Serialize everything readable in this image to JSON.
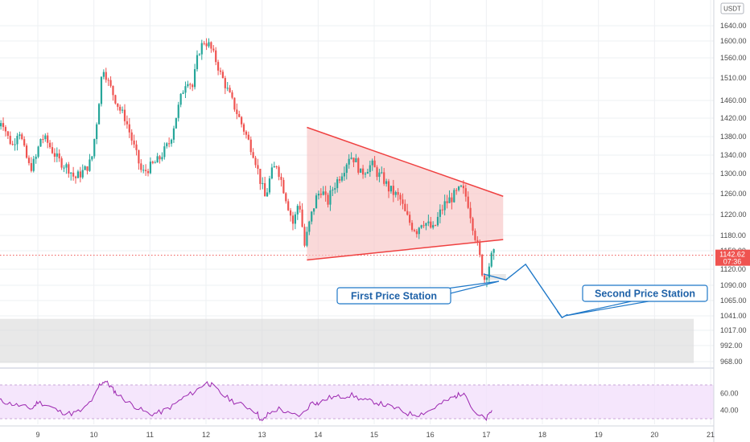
{
  "currency_badge": "USDT",
  "price_axis": {
    "ticks": [
      "1640.00",
      "1600.00",
      "1560.00",
      "1510.00",
      "1460.00",
      "1420.00",
      "1380.00",
      "1340.00",
      "1300.00",
      "1260.00",
      "1220.00",
      "1180.00",
      "1150.00",
      "1120.00",
      "1090.00",
      "1065.00",
      "1041.00",
      "1017.00",
      "992.00",
      "968.00"
    ]
  },
  "last_price": {
    "value": "1142.62",
    "countdown": "07:36",
    "color": "#ef5350"
  },
  "date_axis": {
    "ticks": [
      "9",
      "10",
      "11",
      "12",
      "13",
      "14",
      "15",
      "16",
      "17",
      "18",
      "19",
      "20",
      "21"
    ]
  },
  "annotations": {
    "first_station": "First Price Station",
    "second_station": "Second Price Station"
  },
  "rsi": {
    "ticks": [
      "60.00",
      "40.00"
    ],
    "upper": 70,
    "lower": 30
  },
  "colors": {
    "up": "#26a69a",
    "down": "#ef5350",
    "triangle_fill": "#f7c5c5",
    "triangle_line": "#ef4040",
    "rsi_line": "#9c27b0",
    "rsi_band": "#f3e0fb",
    "callout": "#1f78c8",
    "zone": "#d9d9d9"
  },
  "chart_data": {
    "type": "candlestick",
    "x_unit": "day",
    "xlim": [
      8.3,
      21
    ],
    "ylim": [
      957,
      1665
    ],
    "price_path": [
      [
        8.3,
        1390
      ],
      [
        8.4,
        1420
      ],
      [
        8.5,
        1380
      ],
      [
        8.6,
        1360
      ],
      [
        8.7,
        1400
      ],
      [
        8.8,
        1350
      ],
      [
        8.9,
        1310
      ],
      [
        9.0,
        1330
      ],
      [
        9.1,
        1380
      ],
      [
        9.2,
        1370
      ],
      [
        9.3,
        1350
      ],
      [
        9.4,
        1330
      ],
      [
        9.5,
        1320
      ],
      [
        9.6,
        1310
      ],
      [
        9.7,
        1290
      ],
      [
        9.8,
        1300
      ],
      [
        9.9,
        1310
      ],
      [
        10.0,
        1330
      ],
      [
        10.1,
        1420
      ],
      [
        10.2,
        1540
      ],
      [
        10.3,
        1500
      ],
      [
        10.4,
        1470
      ],
      [
        10.5,
        1440
      ],
      [
        10.6,
        1420
      ],
      [
        10.7,
        1380
      ],
      [
        10.8,
        1340
      ],
      [
        10.9,
        1300
      ],
      [
        11.0,
        1310
      ],
      [
        11.1,
        1320
      ],
      [
        11.2,
        1330
      ],
      [
        11.3,
        1350
      ],
      [
        11.4,
        1370
      ],
      [
        11.5,
        1420
      ],
      [
        11.6,
        1470
      ],
      [
        11.7,
        1510
      ],
      [
        11.8,
        1490
      ],
      [
        11.9,
        1570
      ],
      [
        12.0,
        1600
      ],
      [
        12.1,
        1590
      ],
      [
        12.2,
        1560
      ],
      [
        12.3,
        1520
      ],
      [
        12.4,
        1490
      ],
      [
        12.5,
        1460
      ],
      [
        12.6,
        1430
      ],
      [
        12.7,
        1400
      ],
      [
        12.8,
        1370
      ],
      [
        12.9,
        1340
      ],
      [
        13.0,
        1290
      ],
      [
        13.1,
        1250
      ],
      [
        13.2,
        1300
      ],
      [
        13.3,
        1320
      ],
      [
        13.4,
        1280
      ],
      [
        13.5,
        1240
      ],
      [
        13.6,
        1200
      ],
      [
        13.7,
        1250
      ],
      [
        13.8,
        1160
      ],
      [
        13.9,
        1210
      ],
      [
        14.0,
        1250
      ],
      [
        14.1,
        1270
      ],
      [
        14.2,
        1240
      ],
      [
        14.3,
        1270
      ],
      [
        14.4,
        1290
      ],
      [
        14.5,
        1310
      ],
      [
        14.6,
        1340
      ],
      [
        14.7,
        1330
      ],
      [
        14.8,
        1300
      ],
      [
        14.9,
        1310
      ],
      [
        15.0,
        1320
      ],
      [
        15.1,
        1300
      ],
      [
        15.2,
        1290
      ],
      [
        15.3,
        1270
      ],
      [
        15.4,
        1260
      ],
      [
        15.5,
        1250
      ],
      [
        15.6,
        1220
      ],
      [
        15.7,
        1200
      ],
      [
        15.8,
        1190
      ],
      [
        15.9,
        1210
      ],
      [
        16.0,
        1200
      ],
      [
        16.1,
        1190
      ],
      [
        16.2,
        1220
      ],
      [
        16.3,
        1240
      ],
      [
        16.4,
        1250
      ],
      [
        16.5,
        1260
      ],
      [
        16.6,
        1270
      ],
      [
        16.7,
        1250
      ],
      [
        16.8,
        1200
      ],
      [
        16.9,
        1150
      ],
      [
        17.0,
        1100
      ],
      [
        17.1,
        1130
      ],
      [
        17.15,
        1142.62
      ]
    ],
    "triangle": {
      "vertices": [
        [
          13.8,
          1400
        ],
        [
          17.3,
          1255
        ],
        [
          17.3,
          1172
        ],
        [
          13.8,
          1135
        ]
      ]
    },
    "projection": [
      [
        16.95,
        1111
      ],
      [
        17.35,
        1100
      ],
      [
        17.7,
        1128
      ],
      [
        18.35,
        1038
      ],
      [
        18.45,
        1047
      ]
    ],
    "zones": [
      {
        "name": "First Price Station",
        "x0": 16.95,
        "x1": 17.35,
        "y0": 1100,
        "y1": 1111
      },
      {
        "name": "Second Price Station",
        "x0": 8.3,
        "x1": 20.7,
        "y0": 966,
        "y1": 1036
      }
    ],
    "rsi_path": [
      [
        8.3,
        52
      ],
      [
        8.5,
        48
      ],
      [
        8.7,
        45
      ],
      [
        8.9,
        42
      ],
      [
        9.0,
        50
      ],
      [
        9.2,
        45
      ],
      [
        9.4,
        38
      ],
      [
        9.6,
        36
      ],
      [
        9.8,
        40
      ],
      [
        10.0,
        55
      ],
      [
        10.1,
        70
      ],
      [
        10.2,
        75
      ],
      [
        10.3,
        68
      ],
      [
        10.4,
        60
      ],
      [
        10.6,
        50
      ],
      [
        10.8,
        42
      ],
      [
        11.0,
        35
      ],
      [
        11.2,
        38
      ],
      [
        11.4,
        45
      ],
      [
        11.6,
        55
      ],
      [
        11.8,
        62
      ],
      [
        12.0,
        73
      ],
      [
        12.1,
        70
      ],
      [
        12.3,
        58
      ],
      [
        12.5,
        50
      ],
      [
        12.7,
        45
      ],
      [
        12.9,
        38
      ],
      [
        13.0,
        26
      ],
      [
        13.1,
        35
      ],
      [
        13.3,
        42
      ],
      [
        13.5,
        35
      ],
      [
        13.7,
        34
      ],
      [
        13.9,
        50
      ],
      [
        14.0,
        48
      ],
      [
        14.2,
        55
      ],
      [
        14.4,
        56
      ],
      [
        14.6,
        58
      ],
      [
        14.8,
        52
      ],
      [
        15.0,
        50
      ],
      [
        15.2,
        46
      ],
      [
        15.4,
        42
      ],
      [
        15.6,
        36
      ],
      [
        15.8,
        35
      ],
      [
        16.0,
        40
      ],
      [
        16.2,
        48
      ],
      [
        16.4,
        55
      ],
      [
        16.5,
        58
      ],
      [
        16.6,
        62
      ],
      [
        16.8,
        35
      ],
      [
        17.0,
        30
      ],
      [
        17.1,
        40
      ]
    ]
  }
}
